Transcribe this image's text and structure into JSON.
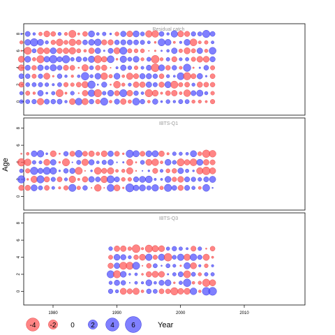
{
  "chart_data": {
    "type": "scatter",
    "subtype": "bubble",
    "ylabel": "Age",
    "xlabel": "Year",
    "x_ticks": [
      "1980",
      "1990",
      "2000",
      "2010"
    ],
    "y_ticks": [
      "0",
      "2",
      "4",
      "6",
      "8"
    ],
    "xlim": [
      1974,
      2009
    ],
    "ylim": [
      -1.6,
      9.2
    ],
    "grid": false,
    "legend_position": "bottom",
    "legend": {
      "labels": [
        "-4",
        "-2",
        "0",
        "2",
        "4",
        "6"
      ],
      "values": [
        -4,
        -2,
        0,
        2,
        4,
        6
      ]
    },
    "colors": {
      "positive": "#5555ff",
      "negative": "#ff5c5c",
      "positive_stroke": "#2b2bd6",
      "negative_stroke": "#e23c3c",
      "panel_border": "#000000",
      "panel_title": "#999999"
    },
    "panels": [
      {
        "title": "Residual catch",
        "years": [
          1977,
          2007
        ],
        "ages": [
          0,
          8
        ],
        "residual_range": [
          -3.0,
          3.0
        ]
      },
      {
        "title": "IBTS-Q1",
        "years": [
          1977,
          2007
        ],
        "ages": [
          1,
          5
        ],
        "residual_range": [
          -3.0,
          3.0
        ]
      },
      {
        "title": "IBTS-Q3",
        "years": [
          1991,
          2007
        ],
        "ages": [
          0,
          5
        ],
        "residual_range": [
          -3.0,
          3.0
        ]
      }
    ]
  }
}
